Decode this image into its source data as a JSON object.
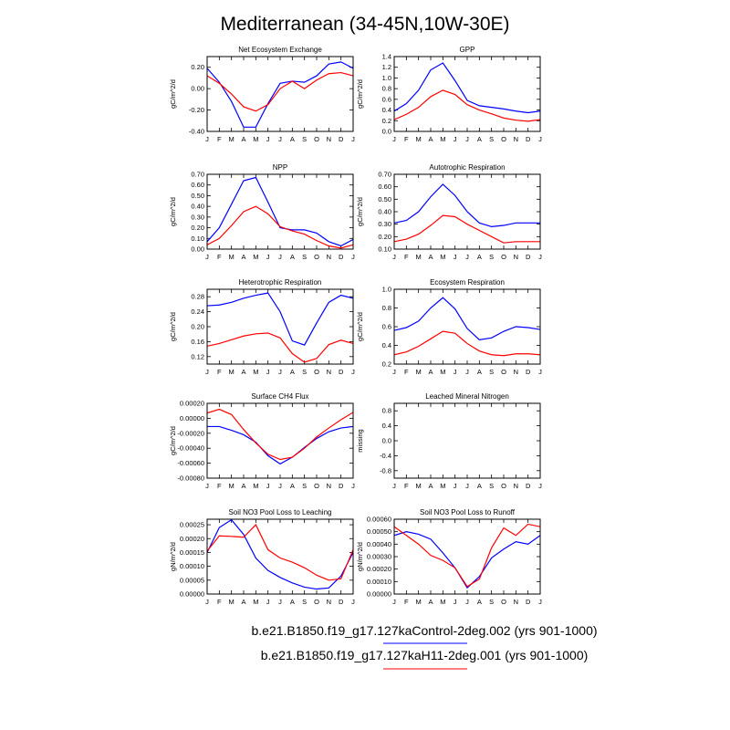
{
  "title": "Mediterranean (34-45N,10W-30E)",
  "months": [
    "J",
    "F",
    "M",
    "A",
    "M",
    "J",
    "J",
    "A",
    "S",
    "O",
    "N",
    "D",
    "J"
  ],
  "colors": {
    "control": "#0000ff",
    "h11": "#ff0000"
  },
  "legend": [
    {
      "label": "b.e21.B1850.f19_g17.127kaControl-2deg.002 (yrs 901-1000)",
      "color": "#0000ff"
    },
    {
      "label": "b.e21.B1850.f19_g17.127kaH11-2deg.001 (yrs 901-1000)",
      "color": "#ff0000"
    }
  ],
  "chart_data": [
    {
      "type": "line",
      "title": "Net Ecosystem Exchange",
      "ylabel": "gC/m^2/d",
      "ylim": [
        -0.4,
        0.3
      ],
      "yticks": [
        -0.4,
        -0.2,
        0.0,
        0.2
      ],
      "ytick_labels": [
        "-0.40",
        "-0.20",
        "0.00",
        "0.20"
      ],
      "series": [
        {
          "values": [
            0.19,
            0.06,
            -0.12,
            -0.36,
            -0.36,
            -0.14,
            0.05,
            0.07,
            0.06,
            0.12,
            0.23,
            0.25,
            0.19
          ]
        },
        {
          "values": [
            0.12,
            0.05,
            -0.05,
            -0.17,
            -0.21,
            -0.15,
            0.0,
            0.07,
            0.0,
            0.08,
            0.14,
            0.15,
            0.12
          ]
        }
      ]
    },
    {
      "type": "line",
      "title": "GPP",
      "ylabel": "gC/m^2/d",
      "ylim": [
        0.0,
        1.4
      ],
      "yticks": [
        0.0,
        0.2,
        0.4,
        0.6,
        0.8,
        1.0,
        1.2,
        1.4
      ],
      "ytick_labels": [
        "0.0",
        "0.2",
        "0.4",
        "0.6",
        "0.8",
        "1.0",
        "1.2",
        "1.4"
      ],
      "series": [
        {
          "values": [
            0.38,
            0.52,
            0.77,
            1.15,
            1.28,
            0.95,
            0.58,
            0.48,
            0.45,
            0.42,
            0.38,
            0.35,
            0.38
          ]
        },
        {
          "values": [
            0.22,
            0.32,
            0.45,
            0.65,
            0.77,
            0.69,
            0.5,
            0.4,
            0.33,
            0.25,
            0.21,
            0.19,
            0.22
          ]
        }
      ]
    },
    {
      "type": "line",
      "title": "NPP",
      "ylabel": "gC/m^2/d",
      "ylim": [
        0.0,
        0.7
      ],
      "yticks": [
        0.0,
        0.1,
        0.2,
        0.3,
        0.4,
        0.5,
        0.6,
        0.7
      ],
      "ytick_labels": [
        "0.00",
        "0.10",
        "0.20",
        "0.30",
        "0.40",
        "0.50",
        "0.60",
        "0.70"
      ],
      "series": [
        {
          "values": [
            0.07,
            0.2,
            0.42,
            0.64,
            0.67,
            0.44,
            0.2,
            0.18,
            0.18,
            0.15,
            0.07,
            0.03,
            0.09
          ]
        },
        {
          "values": [
            0.04,
            0.1,
            0.22,
            0.35,
            0.4,
            0.33,
            0.21,
            0.17,
            0.14,
            0.08,
            0.03,
            0.01,
            0.04
          ]
        }
      ]
    },
    {
      "type": "line",
      "title": "Autotrophic Respiration",
      "ylabel": "gC/m^2/d",
      "ylim": [
        0.1,
        0.7
      ],
      "yticks": [
        0.1,
        0.2,
        0.3,
        0.4,
        0.5,
        0.6,
        0.7
      ],
      "ytick_labels": [
        "0.10",
        "0.20",
        "0.30",
        "0.40",
        "0.50",
        "0.60",
        "0.70"
      ],
      "series": [
        {
          "values": [
            0.31,
            0.33,
            0.4,
            0.52,
            0.62,
            0.53,
            0.4,
            0.31,
            0.28,
            0.29,
            0.31,
            0.31,
            0.31
          ]
        },
        {
          "values": [
            0.16,
            0.18,
            0.22,
            0.29,
            0.37,
            0.36,
            0.3,
            0.25,
            0.2,
            0.15,
            0.16,
            0.16,
            0.16
          ]
        }
      ]
    },
    {
      "type": "line",
      "title": "Heterotrophic Respiration",
      "ylabel": "gC/m^2/d",
      "ylim": [
        0.1,
        0.3
      ],
      "yticks": [
        0.12,
        0.16,
        0.2,
        0.24,
        0.28
      ],
      "ytick_labels": [
        "0.12",
        "0.16",
        "0.20",
        "0.24",
        "0.28"
      ],
      "series": [
        {
          "values": [
            0.256,
            0.258,
            0.265,
            0.276,
            0.284,
            0.29,
            0.24,
            0.162,
            0.151,
            0.21,
            0.265,
            0.284,
            0.276
          ]
        },
        {
          "values": [
            0.148,
            0.155,
            0.165,
            0.175,
            0.181,
            0.183,
            0.17,
            0.128,
            0.105,
            0.115,
            0.152,
            0.164,
            0.155
          ]
        }
      ]
    },
    {
      "type": "line",
      "title": "Ecosystem Respiration",
      "ylabel": "gC/m^2/d",
      "ylim": [
        0.2,
        1.0
      ],
      "yticks": [
        0.2,
        0.4,
        0.6,
        0.8,
        1.0
      ],
      "ytick_labels": [
        "0.2",
        "0.4",
        "0.6",
        "0.8",
        "1.0"
      ],
      "series": [
        {
          "values": [
            0.56,
            0.59,
            0.66,
            0.8,
            0.91,
            0.79,
            0.58,
            0.46,
            0.48,
            0.55,
            0.6,
            0.59,
            0.57
          ]
        },
        {
          "values": [
            0.3,
            0.33,
            0.39,
            0.47,
            0.55,
            0.53,
            0.42,
            0.34,
            0.3,
            0.29,
            0.31,
            0.31,
            0.3
          ]
        }
      ]
    },
    {
      "type": "line",
      "title": "Surface CH4 Flux",
      "ylabel": "gC/m^2/d",
      "ylim": [
        -0.0008,
        0.0002
      ],
      "yticks": [
        -0.0008,
        -0.0006,
        -0.0004,
        -0.0002,
        0.0,
        0.0002
      ],
      "ytick_labels": [
        "-0.00080",
        "-0.00060",
        "-0.00040",
        "-0.00020",
        "0.00000",
        "0.00020"
      ],
      "series": [
        {
          "values": [
            -0.00011,
            -0.00011,
            -0.00016,
            -0.00022,
            -0.00032,
            -0.0005,
            -0.00061,
            -0.00052,
            -0.00039,
            -0.00027,
            -0.00018,
            -0.00013,
            -0.00011
          ]
        },
        {
          "values": [
            7e-05,
            0.00012,
            5e-05,
            -0.00015,
            -0.00033,
            -0.00048,
            -0.00055,
            -0.00052,
            -0.0004,
            -0.00025,
            -0.00013,
            -2e-05,
            8e-05
          ]
        }
      ]
    },
    {
      "type": "line",
      "title": "Leached Mineral Nitrogen",
      "ylabel": "missing",
      "ylim": [
        -1.0,
        1.0
      ],
      "yticks": [
        -0.8,
        -0.4,
        0.0,
        0.4,
        0.8
      ],
      "ytick_labels": [
        "-0.8",
        "-0.4",
        "0.0",
        "0.4",
        "0.8"
      ],
      "series": []
    },
    {
      "type": "line",
      "title": "Soil NO3 Pool Loss to Leaching",
      "ylabel": "gN/m^2/d",
      "ylim": [
        0.0,
        0.00027
      ],
      "yticks": [
        0.0,
        5e-05,
        0.0001,
        0.00015,
        0.0002,
        0.00025
      ],
      "ytick_labels": [
        "0.00000",
        "0.00005",
        "0.00010",
        "0.00015",
        "0.00020",
        "0.00025"
      ],
      "series": [
        {
          "values": [
            0.00015,
            0.00024,
            0.000268,
            0.000215,
            0.00013,
            8.5e-05,
            6e-05,
            4e-05,
            2.5e-05,
            1.8e-05,
            2.2e-05,
            6.5e-05,
            0.00015
          ]
        },
        {
          "values": [
            0.000155,
            0.00021,
            0.000208,
            0.000205,
            0.00025,
            0.00016,
            0.00013,
            0.000115,
            9.5e-05,
            6.8e-05,
            5e-05,
            5.5e-05,
            0.00016
          ]
        }
      ]
    },
    {
      "type": "line",
      "title": "Soil NO3 Pool Loss to Runoff",
      "ylabel": "gN/m^2/d",
      "ylim": [
        0.0,
        0.0006
      ],
      "yticks": [
        0.0,
        0.0001,
        0.0002,
        0.0003,
        0.0004,
        0.0005,
        0.0006
      ],
      "ytick_labels": [
        "0.00000",
        "0.00010",
        "0.00020",
        "0.00030",
        "0.00040",
        "0.00050",
        "0.00060"
      ],
      "series": [
        {
          "values": [
            0.00047,
            0.0005,
            0.00048,
            0.00044,
            0.00033,
            0.00021,
            5e-05,
            0.00014,
            0.00029,
            0.00036,
            0.00042,
            0.0004,
            0.00047
          ]
        },
        {
          "values": [
            0.00054,
            0.00047,
            0.0004,
            0.00031,
            0.00027,
            0.00021,
            6e-05,
            0.00012,
            0.00037,
            0.00053,
            0.00047,
            0.00056,
            0.00054
          ]
        }
      ]
    }
  ]
}
